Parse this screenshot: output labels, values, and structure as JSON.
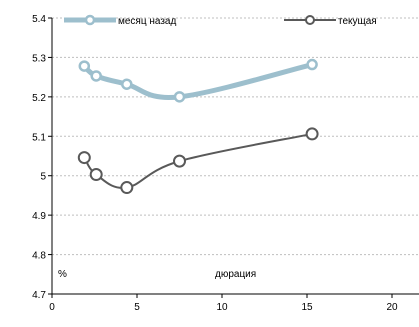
{
  "chart_data": {
    "type": "line",
    "xlabel": "дюрация",
    "ylabel": "%",
    "xlim": [
      0,
      20
    ],
    "ylim": [
      4.7,
      5.4
    ],
    "x_ticks": [
      "0",
      "5",
      "10",
      "15",
      "20"
    ],
    "y_ticks": [
      "4.7",
      "4.8",
      "4.9",
      "5",
      "5.1",
      "5.2",
      "5.3",
      "5.4"
    ],
    "grid": "horizontal dashed",
    "legend_position": "top",
    "series": [
      {
        "name": "месяц назад",
        "color": "#9dbfcd",
        "marker": "open-circle",
        "points": [
          [
            1.9,
            5.278
          ],
          [
            2.6,
            5.253
          ],
          [
            4.4,
            5.232
          ],
          [
            7.5,
            5.2
          ],
          [
            15.3,
            5.282
          ]
        ]
      },
      {
        "name": "текущая",
        "color": "#595959",
        "marker": "open-circle",
        "points": [
          [
            1.9,
            5.046
          ],
          [
            2.6,
            5.003
          ],
          [
            4.4,
            4.97
          ],
          [
            7.5,
            5.037
          ],
          [
            15.3,
            5.106
          ]
        ]
      }
    ]
  }
}
